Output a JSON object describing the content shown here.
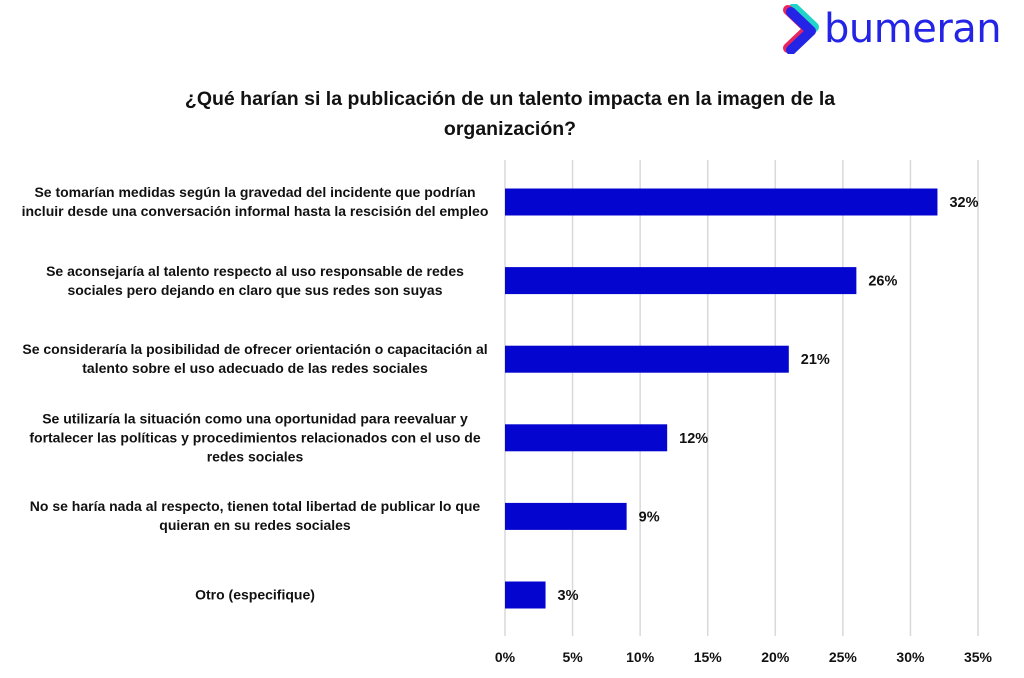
{
  "logo": {
    "text": "bumeran",
    "colors": {
      "brand": "#2424e6",
      "accent1": "#e8255c",
      "accent2": "#21d4c8"
    }
  },
  "chart_data": {
    "type": "bar",
    "orientation": "horizontal",
    "title": "¿Qué harían si la publicación de un talento impacta en la imagen de la organización?",
    "categories": [
      "Se tomarían medidas según la gravedad del incidente que podrían incluir desde una conversación informal hasta la rescisión del empleo",
      "Se aconsejaría al talento respecto al uso responsable de redes sociales pero dejando en claro que sus redes son suyas",
      "Se consideraría la posibilidad de ofrecer orientación o capacitación al talento sobre el uso adecuado de las redes sociales",
      "Se utilizaría la situación como una oportunidad para reevaluar y fortalecer las políticas y procedimientos relacionados con el uso de redes sociales",
      "No se haría nada al respecto, tienen total libertad de publicar lo que quieran en su redes sociales",
      "Otro (especifique)"
    ],
    "values": [
      32,
      26,
      21,
      12,
      9,
      3
    ],
    "data_labels": [
      "32%",
      "26%",
      "21%",
      "12%",
      "9%",
      "3%"
    ],
    "xlim": [
      0,
      35
    ],
    "xticks": [
      "0%",
      "5%",
      "10%",
      "15%",
      "20%",
      "25%",
      "30%",
      "35%"
    ],
    "grid": "vertical",
    "bar_color": "#0505d0",
    "grid_color": "#d9d9d9"
  }
}
